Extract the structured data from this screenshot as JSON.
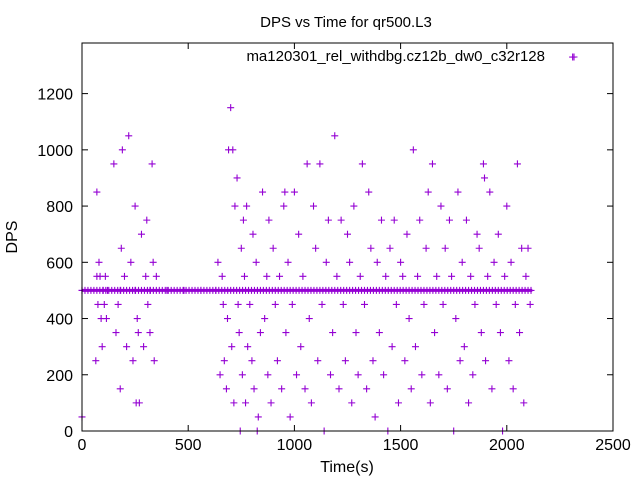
{
  "chart_data": {
    "type": "scatter",
    "title": "DPS vs Time for qr500.L3",
    "xlabel": "Time(s)",
    "ylabel": "DPS",
    "xlim": [
      0,
      2500
    ],
    "ylim": [
      0,
      1380
    ],
    "xticks": [
      "0",
      "500",
      "1000",
      "1500",
      "2000",
      "2500"
    ],
    "yticks": [
      "0",
      "200",
      "400",
      "600",
      "800",
      "1000",
      "1200"
    ],
    "grid": false,
    "legend": "top-right",
    "marker": "plus",
    "series": [
      {
        "name": "ma120301_rel_withdbg.cz12b_dw0_c32r128",
        "color": "#9400d3",
        "points": [
          [
            0,
            50
          ],
          [
            0,
            500
          ],
          [
            65,
            250
          ],
          [
            70,
            850
          ],
          [
            70,
            550
          ],
          [
            75,
            450
          ],
          [
            80,
            600
          ],
          [
            85,
            550
          ],
          [
            90,
            400
          ],
          [
            95,
            300
          ],
          [
            100,
            500
          ],
          [
            105,
            450
          ],
          [
            110,
            550
          ],
          [
            115,
            400
          ],
          [
            120,
            500
          ],
          [
            150,
            950
          ],
          [
            160,
            350
          ],
          [
            170,
            450
          ],
          [
            180,
            150
          ],
          [
            185,
            650
          ],
          [
            190,
            1000
          ],
          [
            200,
            550
          ],
          [
            210,
            300
          ],
          [
            220,
            1050
          ],
          [
            230,
            600
          ],
          [
            240,
            250
          ],
          [
            250,
            800
          ],
          [
            255,
            100
          ],
          [
            260,
            400
          ],
          [
            265,
            350
          ],
          [
            270,
            100
          ],
          [
            280,
            700
          ],
          [
            290,
            300
          ],
          [
            300,
            550
          ],
          [
            305,
            750
          ],
          [
            310,
            450
          ],
          [
            320,
            350
          ],
          [
            330,
            950
          ],
          [
            335,
            600
          ],
          [
            340,
            250
          ],
          [
            350,
            550
          ],
          [
            180,
            500
          ],
          [
            250,
            500
          ],
          [
            320,
            500
          ],
          [
            400,
            500
          ],
          [
            480,
            500
          ],
          [
            560,
            500
          ],
          [
            630,
            500
          ],
          [
            640,
            600
          ],
          [
            650,
            200
          ],
          [
            660,
            550
          ],
          [
            665,
            450
          ],
          [
            670,
            250
          ],
          [
            680,
            150
          ],
          [
            685,
            400
          ],
          [
            690,
            1000
          ],
          [
            700,
            1150
          ],
          [
            705,
            300
          ],
          [
            710,
            1000
          ],
          [
            715,
            100
          ],
          [
            720,
            800
          ],
          [
            730,
            900
          ],
          [
            735,
            450
          ],
          [
            740,
            350
          ],
          [
            745,
            0
          ],
          [
            750,
            650
          ],
          [
            755,
            200
          ],
          [
            760,
            750
          ],
          [
            765,
            550
          ],
          [
            770,
            100
          ],
          [
            775,
            800
          ],
          [
            780,
            300
          ],
          [
            790,
            450
          ],
          [
            800,
            250
          ],
          [
            805,
            700
          ],
          [
            810,
            150
          ],
          [
            820,
            600
          ],
          [
            825,
            0
          ],
          [
            830,
            50
          ],
          [
            840,
            350
          ],
          [
            850,
            850
          ],
          [
            860,
            400
          ],
          [
            870,
            550
          ],
          [
            875,
            200
          ],
          [
            880,
            750
          ],
          [
            890,
            100
          ],
          [
            900,
            650
          ],
          [
            910,
            450
          ],
          [
            920,
            250
          ],
          [
            930,
            550
          ],
          [
            940,
            150
          ],
          [
            950,
            800
          ],
          [
            955,
            850
          ],
          [
            960,
            350
          ],
          [
            970,
            600
          ],
          [
            980,
            50
          ],
          [
            990,
            450
          ],
          [
            1000,
            850
          ],
          [
            1010,
            200
          ],
          [
            1020,
            700
          ],
          [
            1030,
            300
          ],
          [
            1040,
            550
          ],
          [
            1050,
            150
          ],
          [
            1060,
            950
          ],
          [
            1070,
            400
          ],
          [
            1080,
            100
          ],
          [
            1090,
            800
          ],
          [
            1100,
            650
          ],
          [
            1110,
            250
          ],
          [
            1120,
            950
          ],
          [
            1130,
            450
          ],
          [
            1140,
            0
          ],
          [
            1150,
            600
          ],
          [
            1160,
            750
          ],
          [
            1170,
            200
          ],
          [
            1180,
            350
          ],
          [
            1190,
            1050
          ],
          [
            1200,
            550
          ],
          [
            1210,
            150
          ],
          [
            1220,
            750
          ],
          [
            1230,
            450
          ],
          [
            1240,
            250
          ],
          [
            1250,
            700
          ],
          [
            1260,
            600
          ],
          [
            1270,
            100
          ],
          [
            1280,
            800
          ],
          [
            1290,
            350
          ],
          [
            1300,
            200
          ],
          [
            1310,
            550
          ],
          [
            1320,
            950
          ],
          [
            1330,
            450
          ],
          [
            1340,
            150
          ],
          [
            1350,
            850
          ],
          [
            1360,
            650
          ],
          [
            1370,
            250
          ],
          [
            1380,
            50
          ],
          [
            1390,
            600
          ],
          [
            1400,
            350
          ],
          [
            1410,
            750
          ],
          [
            1420,
            200
          ],
          [
            1430,
            550
          ],
          [
            1440,
            0
          ],
          [
            1450,
            650
          ],
          [
            1460,
            300
          ],
          [
            1470,
            750
          ],
          [
            1480,
            450
          ],
          [
            1490,
            100
          ],
          [
            1500,
            600
          ],
          [
            1510,
            550
          ],
          [
            1520,
            250
          ],
          [
            1530,
            700
          ],
          [
            1540,
            400
          ],
          [
            1550,
            150
          ],
          [
            1560,
            1000
          ],
          [
            1570,
            300
          ],
          [
            1580,
            550
          ],
          [
            1590,
            750
          ],
          [
            1600,
            200
          ],
          [
            1610,
            450
          ],
          [
            1620,
            650
          ],
          [
            1630,
            850
          ],
          [
            1640,
            100
          ],
          [
            1650,
            950
          ],
          [
            1660,
            350
          ],
          [
            1670,
            550
          ],
          [
            1680,
            200
          ],
          [
            1690,
            800
          ],
          [
            1700,
            450
          ],
          [
            1710,
            650
          ],
          [
            1720,
            150
          ],
          [
            1730,
            750
          ],
          [
            1740,
            550
          ],
          [
            1750,
            0
          ],
          [
            1760,
            400
          ],
          [
            1770,
            850
          ],
          [
            1780,
            250
          ],
          [
            1790,
            600
          ],
          [
            1800,
            300
          ],
          [
            1810,
            750
          ],
          [
            1820,
            100
          ],
          [
            1830,
            550
          ],
          [
            1840,
            200
          ],
          [
            1850,
            450
          ],
          [
            1860,
            700
          ],
          [
            1870,
            650
          ],
          [
            1880,
            350
          ],
          [
            1890,
            950
          ],
          [
            1895,
            900
          ],
          [
            1900,
            250
          ],
          [
            1910,
            550
          ],
          [
            1920,
            850
          ],
          [
            1930,
            150
          ],
          [
            1940,
            600
          ],
          [
            1950,
            450
          ],
          [
            1960,
            700
          ],
          [
            1970,
            350
          ],
          [
            1980,
            0
          ],
          [
            1990,
            550
          ],
          [
            2000,
            800
          ],
          [
            2010,
            250
          ],
          [
            2020,
            600
          ],
          [
            2030,
            150
          ],
          [
            2040,
            450
          ],
          [
            2050,
            950
          ],
          [
            2060,
            350
          ],
          [
            2070,
            650
          ],
          [
            2080,
            100
          ],
          [
            2090,
            550
          ],
          [
            2100,
            650
          ],
          [
            2110,
            450
          ],
          [
            2310,
            1330
          ]
        ]
      }
    ]
  }
}
